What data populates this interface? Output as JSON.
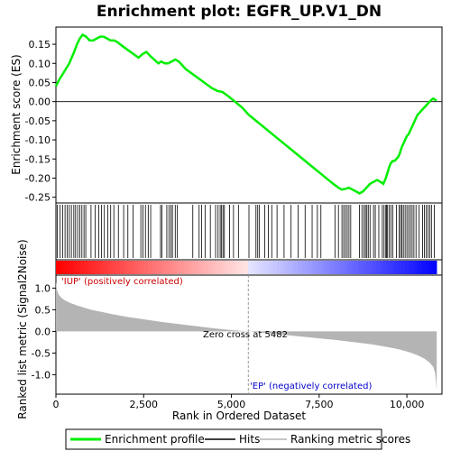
{
  "chart_data": {
    "type": "line",
    "title": "Enrichment plot: EGFR_UP.V1_DN",
    "xlabel": "Rank in Ordered Dataset",
    "es_ylabel": "Enrichment score (ES)",
    "metric_ylabel": "Ranked list metric (Signal2Noise)",
    "xlim": [
      0,
      11000
    ],
    "es_ylim": [
      -0.265,
      0.195
    ],
    "metric_ylim": [
      -1.45,
      1.3
    ],
    "x_ticks": [
      0,
      2500,
      5000,
      7500,
      10000
    ],
    "x_tick_labels": [
      "0",
      "2,500",
      "5,000",
      "7,500",
      "10,000"
    ],
    "es_ticks": [
      0.15,
      0.1,
      0.05,
      0.0,
      -0.05,
      -0.1,
      -0.15,
      -0.2,
      -0.25
    ],
    "es_tick_labels": [
      "0.15",
      "0.10",
      "0.05",
      "0.00",
      "-0.05",
      "-0.10",
      "-0.15",
      "-0.20",
      "-0.25"
    ],
    "metric_ticks": [
      1.0,
      0.5,
      0.0,
      -0.5,
      -1.0
    ],
    "metric_tick_labels": [
      "1.0",
      "0.5",
      "0.0",
      "-0.5",
      "-1.0"
    ],
    "series": [
      {
        "name": "Enrichment profile",
        "color": "#00ee00",
        "x": [
          0,
          80,
          180,
          280,
          380,
          450,
          520,
          600,
          680,
          760,
          860,
          960,
          1060,
          1160,
          1260,
          1360,
          1460,
          1560,
          1660,
          1760,
          1900,
          2050,
          2200,
          2350,
          2480,
          2580,
          2680,
          2800,
          2920,
          3000,
          3100,
          3200,
          3300,
          3400,
          3500,
          3600,
          3700,
          3850,
          4000,
          4150,
          4300,
          4450,
          4600,
          4750,
          4900,
          5100,
          5300,
          5500,
          5700,
          5900,
          6100,
          6300,
          6500,
          6700,
          6900,
          7100,
          7300,
          7500,
          7700,
          7900,
          8050,
          8150,
          8250,
          8350,
          8450,
          8550,
          8650,
          8750,
          8850,
          8950,
          9050,
          9150,
          9250,
          9330,
          9400,
          9450,
          9500,
          9550,
          9600,
          9650,
          9700,
          9750,
          9800,
          9850,
          9900,
          9950,
          10000,
          10050,
          10100,
          10150,
          10200,
          10250,
          10300,
          10350,
          10400,
          10450,
          10500,
          10550,
          10600,
          10650,
          10700,
          10750,
          10800,
          10850
        ],
        "y": [
          0.04,
          0.055,
          0.07,
          0.085,
          0.1,
          0.115,
          0.13,
          0.15,
          0.165,
          0.175,
          0.17,
          0.16,
          0.16,
          0.165,
          0.17,
          0.17,
          0.165,
          0.16,
          0.16,
          0.155,
          0.145,
          0.135,
          0.125,
          0.115,
          0.125,
          0.13,
          0.12,
          0.11,
          0.1,
          0.105,
          0.1,
          0.1,
          0.105,
          0.11,
          0.105,
          0.095,
          0.085,
          0.075,
          0.065,
          0.055,
          0.045,
          0.035,
          0.028,
          0.025,
          0.015,
          0.0,
          -0.015,
          -0.035,
          -0.05,
          -0.065,
          -0.08,
          -0.095,
          -0.11,
          -0.125,
          -0.14,
          -0.155,
          -0.17,
          -0.185,
          -0.2,
          -0.215,
          -0.225,
          -0.23,
          -0.228,
          -0.225,
          -0.23,
          -0.235,
          -0.24,
          -0.235,
          -0.225,
          -0.215,
          -0.21,
          -0.205,
          -0.21,
          -0.215,
          -0.2,
          -0.185,
          -0.17,
          -0.16,
          -0.155,
          -0.155,
          -0.15,
          -0.145,
          -0.135,
          -0.12,
          -0.11,
          -0.1,
          -0.09,
          -0.085,
          -0.075,
          -0.065,
          -0.055,
          -0.045,
          -0.035,
          -0.03,
          -0.025,
          -0.02,
          -0.015,
          -0.01,
          -0.005,
          0.0,
          0.005,
          0.008,
          0.005,
          0.003
        ]
      },
      {
        "name": "Hits",
        "color": "#000000",
        "x": [
          40,
          120,
          190,
          260,
          320,
          380,
          440,
          510,
          560,
          620,
          680,
          740,
          800,
          850,
          1000,
          1120,
          1220,
          1300,
          1380,
          1480,
          1560,
          1650,
          1780,
          1930,
          2050,
          2200,
          2420,
          2480,
          2550,
          2630,
          2700,
          2980,
          3020,
          3160,
          3220,
          3280,
          3320,
          3400,
          3460,
          3900,
          4080,
          4150,
          4250,
          4400,
          4550,
          4620,
          4680,
          4720,
          4760,
          4800,
          4950,
          5060,
          5200,
          5500,
          5700,
          5750,
          5800,
          5950,
          6050,
          6150,
          6300,
          6500,
          6700,
          6900,
          7100,
          7300,
          7450,
          7550,
          7950,
          8050,
          8150,
          8200,
          8250,
          8300,
          8350,
          8400,
          8650,
          8720,
          8780,
          8820,
          8860,
          8900,
          8950,
          9050,
          9100,
          9200,
          9300,
          9350,
          9400,
          9420,
          9450,
          9500,
          9550,
          9600,
          9700,
          9780,
          9820,
          9860,
          9900,
          9950,
          10000,
          10050,
          10100,
          10150,
          10200,
          10260,
          10350,
          10450,
          10500,
          10550,
          10600,
          10650,
          10700,
          10780
        ]
      }
    ],
    "metric": {
      "name": "Ranking metric scores",
      "color": "#b4b4b4",
      "x": [
        0,
        30,
        80,
        150,
        250,
        400,
        600,
        800,
        1000,
        1300,
        1600,
        2000,
        2500,
        3000,
        3500,
        4000,
        4500,
        5000,
        5482,
        6000,
        6500,
        7000,
        7500,
        8000,
        8500,
        9000,
        9500,
        9800,
        10100,
        10300,
        10500,
        10650,
        10750,
        10800,
        10830,
        10850
      ],
      "y": [
        1.15,
        0.95,
        0.85,
        0.78,
        0.72,
        0.66,
        0.6,
        0.55,
        0.5,
        0.45,
        0.4,
        0.34,
        0.28,
        0.22,
        0.17,
        0.12,
        0.07,
        0.03,
        0.0,
        -0.04,
        -0.08,
        -0.12,
        -0.16,
        -0.2,
        -0.25,
        -0.3,
        -0.37,
        -0.42,
        -0.49,
        -0.55,
        -0.63,
        -0.72,
        -0.82,
        -0.95,
        -1.15,
        -1.35
      ]
    },
    "zero_cross": 5482,
    "annotations": {
      "zero_cross_text": "Zero cross at 5482",
      "pos_label": "'IUP' (positively correlated)",
      "neg_label": "'EP' (negatively correlated)"
    },
    "colors": {
      "pos_label": "#cc0000",
      "neg_label": "#0000cc",
      "heat_pos": "#ff0000",
      "heat_neg": "#0000ff"
    },
    "legend": {
      "position": "bottom",
      "entries": [
        "Enrichment profile",
        "Hits",
        "Ranking metric scores"
      ]
    }
  }
}
